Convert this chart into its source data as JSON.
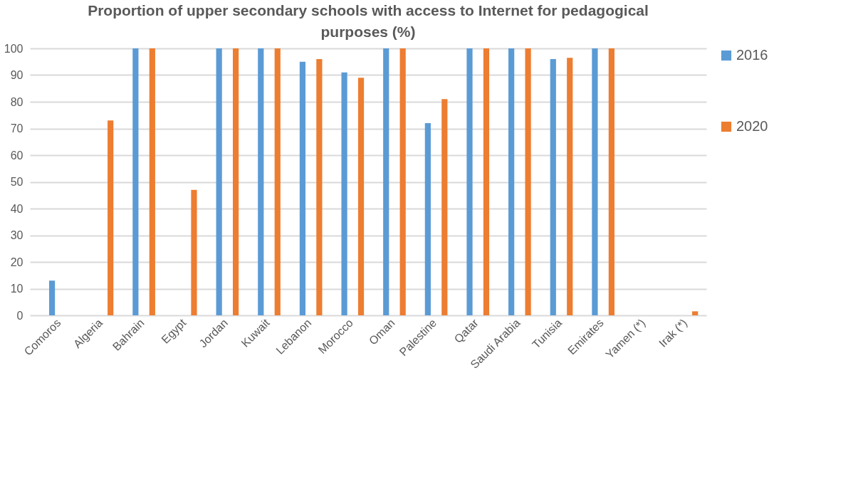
{
  "chart_data": {
    "type": "bar",
    "title": "Proportion of upper secondary schools with access to Internet for pedagogical purposes (%)",
    "categories": [
      "Comoros",
      "Algeria",
      "Bahrain",
      "Egypt",
      "Jordan",
      "Kuwait",
      "Lebanon",
      "Morocco",
      "Oman",
      "Palestine",
      "Qatar",
      "Saudi Arabia",
      "Tunisia",
      "Emirates",
      "Yamen (*)",
      "Irak (*)"
    ],
    "series": [
      {
        "name": "2016",
        "color": "#5b9bd5",
        "values": [
          13,
          null,
          100,
          null,
          100,
          100,
          95,
          91,
          100,
          72,
          100,
          100,
          96,
          100,
          0,
          0
        ]
      },
      {
        "name": "2020",
        "color": "#ed7d31",
        "values": [
          null,
          73,
          100,
          47,
          100,
          100,
          96,
          89,
          100,
          81,
          100,
          100,
          96.5,
          100,
          0,
          1.5
        ]
      }
    ],
    "ylim": [
      0,
      100
    ],
    "yticks": [
      0,
      10,
      20,
      30,
      40,
      50,
      60,
      70,
      80,
      90,
      100
    ],
    "grid": "y",
    "legend": "right"
  }
}
